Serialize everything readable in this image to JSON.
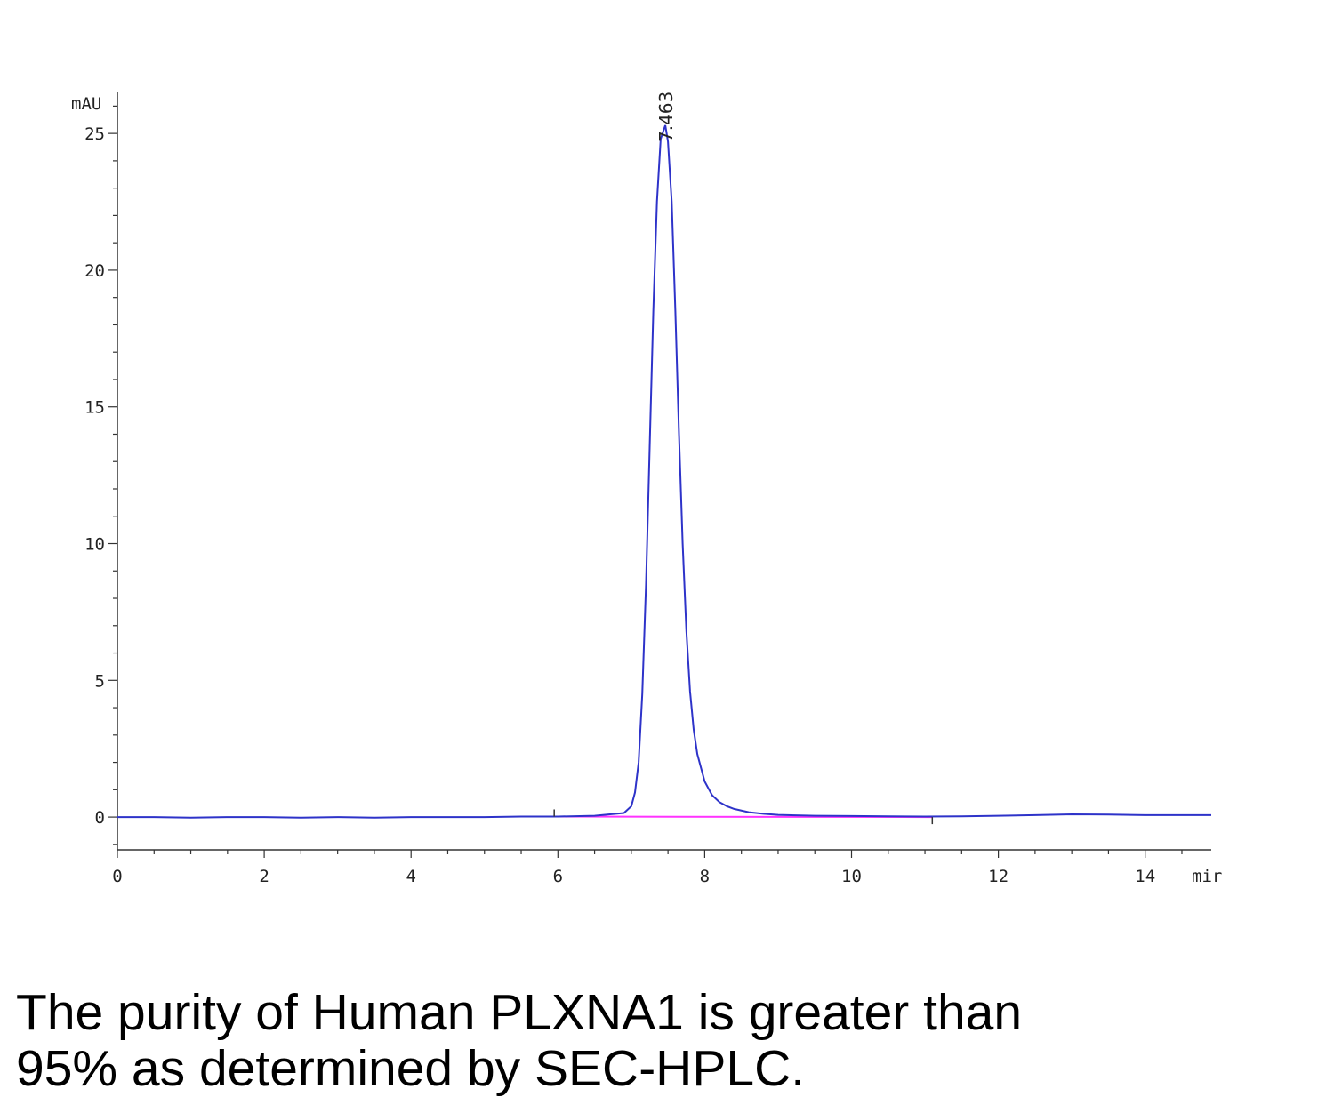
{
  "chart_data": {
    "type": "line",
    "xlabel": "mir",
    "ylabel": "mAU",
    "xlim": [
      0,
      14.9
    ],
    "ylim": [
      -1.2,
      26.5
    ],
    "x_ticks": [
      "0",
      "2",
      "4",
      "6",
      "8",
      "10",
      "12",
      "14"
    ],
    "y_ticks": [
      "0",
      "5",
      "10",
      "15",
      "20",
      "25"
    ],
    "grid": false,
    "peak_label": "7.463",
    "series": [
      {
        "color": "#2e33c9",
        "x": [
          0,
          0.5,
          1,
          1.5,
          2,
          2.5,
          3,
          3.5,
          4,
          4.5,
          5,
          5.5,
          6,
          6.5,
          6.9,
          7.0,
          7.05,
          7.1,
          7.15,
          7.2,
          7.25,
          7.3,
          7.35,
          7.4,
          7.463,
          7.5,
          7.55,
          7.6,
          7.65,
          7.7,
          7.75,
          7.8,
          7.85,
          7.9,
          8.0,
          8.1,
          8.2,
          8.3,
          8.4,
          8.6,
          8.8,
          9.0,
          9.5,
          10,
          10.5,
          11,
          11.5,
          12,
          12.5,
          13,
          13.5,
          14,
          14.5,
          14.9
        ],
        "y": [
          0.0,
          0.0,
          -0.02,
          0.0,
          0.0,
          -0.02,
          0.0,
          -0.02,
          0.0,
          0.0,
          0.0,
          0.02,
          0.02,
          0.05,
          0.15,
          0.4,
          0.9,
          2.0,
          4.5,
          8.5,
          13.5,
          18.5,
          22.5,
          24.8,
          25.3,
          24.7,
          22.5,
          18.5,
          14.0,
          10.0,
          6.8,
          4.6,
          3.2,
          2.3,
          1.3,
          0.8,
          0.55,
          0.4,
          0.3,
          0.18,
          0.12,
          0.08,
          0.05,
          0.04,
          0.03,
          0.02,
          0.03,
          0.05,
          0.07,
          0.1,
          0.09,
          0.07,
          0.07,
          0.07
        ]
      },
      {
        "name": "baseline",
        "color": "#ff33ff",
        "x": [
          5.95,
          11.1
        ],
        "y": [
          0.02,
          0.0
        ]
      }
    ]
  },
  "caption": {
    "line1": "The purity of Human PLXNA1 is greater than",
    "line2": "95% as determined by SEC-HPLC."
  }
}
